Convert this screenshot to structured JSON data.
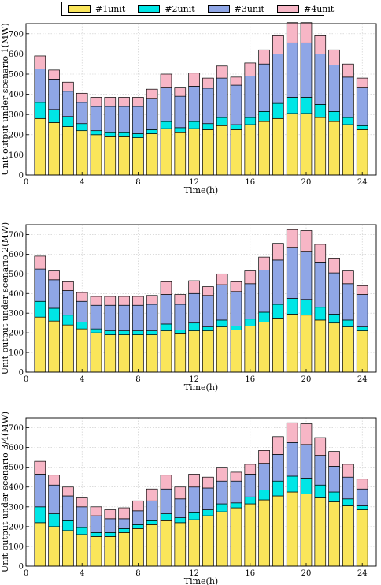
{
  "legend": {
    "items": [
      {
        "label": "#1unit",
        "color": "#fae55a"
      },
      {
        "label": "#2unit",
        "color": "#00e6e6"
      },
      {
        "label": "#3unit",
        "color": "#8fa6e6"
      },
      {
        "label": "#4unit",
        "color": "#f7b6c6"
      }
    ]
  },
  "chart_data": [
    {
      "type": "bar",
      "stacked": true,
      "title": "",
      "xlabel": "Time(h)",
      "ylabel": "Unit output under scenario 1(MW)",
      "xticks": [
        0,
        4,
        8,
        12,
        16,
        20,
        24
      ],
      "yticks": [
        0,
        100,
        200,
        300,
        400,
        500,
        600,
        700
      ],
      "xlim": [
        0,
        25
      ],
      "ylim": [
        0,
        750
      ],
      "grid": true,
      "x": [
        1,
        2,
        3,
        4,
        5,
        6,
        7,
        8,
        9,
        10,
        11,
        12,
        13,
        14,
        15,
        16,
        17,
        18,
        19,
        20,
        21,
        22,
        23,
        24
      ],
      "series": [
        {
          "name": "#1unit",
          "values": [
            280,
            260,
            240,
            220,
            200,
            190,
            190,
            185,
            205,
            230,
            210,
            230,
            225,
            245,
            225,
            250,
            265,
            280,
            305,
            305,
            285,
            265,
            250,
            225
          ]
        },
        {
          "name": "#2unit",
          "values": [
            80,
            65,
            50,
            35,
            20,
            20,
            20,
            20,
            20,
            35,
            25,
            35,
            30,
            40,
            25,
            35,
            50,
            75,
            80,
            80,
            65,
            50,
            35,
            20
          ]
        },
        {
          "name": "#3unit",
          "values": [
            165,
            150,
            125,
            105,
            120,
            130,
            130,
            135,
            155,
            170,
            155,
            175,
            175,
            195,
            195,
            205,
            235,
            245,
            270,
            270,
            250,
            230,
            200,
            190
          ]
        },
        {
          "name": "#4unit",
          "values": [
            65,
            45,
            45,
            45,
            45,
            45,
            45,
            45,
            45,
            65,
            45,
            65,
            50,
            60,
            40,
            65,
            70,
            90,
            100,
            100,
            90,
            75,
            65,
            45
          ]
        }
      ]
    },
    {
      "type": "bar",
      "stacked": true,
      "title": "",
      "xlabel": "Time(h)",
      "ylabel": "Unit output under scenario 2(MW)",
      "xticks": [
        0,
        4,
        8,
        12,
        16,
        20,
        24
      ],
      "yticks": [
        0,
        100,
        200,
        300,
        400,
        500,
        600,
        700
      ],
      "xlim": [
        0,
        25
      ],
      "ylim": [
        0,
        750
      ],
      "grid": true,
      "x": [
        1,
        2,
        3,
        4,
        5,
        6,
        7,
        8,
        9,
        10,
        11,
        12,
        13,
        14,
        15,
        16,
        17,
        18,
        19,
        20,
        21,
        22,
        23,
        24
      ],
      "series": [
        {
          "name": "#1unit",
          "values": [
            280,
            260,
            240,
            220,
            200,
            190,
            190,
            190,
            190,
            210,
            195,
            210,
            210,
            230,
            215,
            235,
            255,
            275,
            295,
            290,
            265,
            250,
            230,
            210
          ]
        },
        {
          "name": "#2unit",
          "values": [
            80,
            65,
            50,
            35,
            20,
            20,
            20,
            20,
            20,
            35,
            20,
            40,
            20,
            35,
            20,
            35,
            50,
            70,
            80,
            80,
            65,
            45,
            35,
            20
          ]
        },
        {
          "name": "#3unit",
          "values": [
            165,
            145,
            125,
            105,
            120,
            130,
            130,
            130,
            135,
            150,
            130,
            150,
            160,
            180,
            175,
            180,
            215,
            225,
            260,
            245,
            230,
            210,
            185,
            165
          ]
        },
        {
          "name": "#4unit",
          "values": [
            65,
            45,
            45,
            45,
            45,
            45,
            45,
            45,
            45,
            65,
            50,
            65,
            45,
            55,
            50,
            65,
            65,
            85,
            90,
            105,
            90,
            75,
            65,
            45
          ]
        }
      ]
    },
    {
      "type": "bar",
      "stacked": true,
      "title": "",
      "xlabel": "Time(h)",
      "ylabel": "Unit output under scenario 3/4(MW)",
      "xticks": [
        0,
        4,
        8,
        12,
        16,
        20,
        24
      ],
      "yticks": [
        0,
        100,
        200,
        300,
        400,
        500,
        600,
        700
      ],
      "xlim": [
        0,
        25
      ],
      "ylim": [
        0,
        750
      ],
      "grid": true,
      "x": [
        1,
        2,
        3,
        4,
        5,
        6,
        7,
        8,
        9,
        10,
        11,
        12,
        13,
        14,
        15,
        16,
        17,
        18,
        19,
        20,
        21,
        22,
        23,
        24
      ],
      "series": [
        {
          "name": "#1unit",
          "values": [
            220,
            200,
            180,
            160,
            150,
            150,
            170,
            190,
            210,
            230,
            220,
            235,
            255,
            275,
            295,
            315,
            335,
            355,
            375,
            365,
            345,
            325,
            305,
            285
          ]
        },
        {
          "name": "#2unit",
          "values": [
            80,
            65,
            50,
            35,
            20,
            20,
            20,
            20,
            20,
            35,
            25,
            35,
            30,
            40,
            25,
            35,
            50,
            75,
            80,
            80,
            65,
            50,
            35,
            20
          ]
        },
        {
          "name": "#3unit",
          "values": [
            165,
            145,
            125,
            105,
            85,
            70,
            50,
            70,
            100,
            125,
            95,
            130,
            110,
            115,
            110,
            115,
            135,
            135,
            170,
            170,
            150,
            130,
            110,
            85
          ]
        },
        {
          "name": "#4unit",
          "values": [
            65,
            50,
            45,
            45,
            45,
            45,
            55,
            50,
            60,
            70,
            60,
            65,
            55,
            70,
            45,
            50,
            65,
            90,
            100,
            105,
            90,
            75,
            65,
            50
          ]
        }
      ]
    }
  ]
}
